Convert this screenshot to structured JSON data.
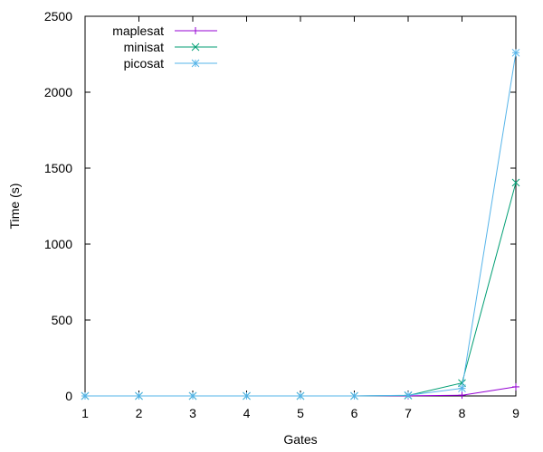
{
  "chart_data": {
    "type": "line",
    "title": "",
    "xlabel": "Gates",
    "ylabel": "Time (s)",
    "xlim": [
      1,
      9
    ],
    "ylim": [
      0,
      2500
    ],
    "xticks": [
      1,
      2,
      3,
      4,
      5,
      6,
      7,
      8,
      9
    ],
    "yticks": [
      0,
      500,
      1000,
      1500,
      2000,
      2500
    ],
    "grid": false,
    "legend_position": "top-left",
    "x": [
      1,
      2,
      3,
      4,
      5,
      6,
      7,
      8,
      9
    ],
    "series": [
      {
        "name": "maplesat",
        "color": "#9400d3",
        "marker": "plus",
        "values": [
          0,
          0,
          0,
          0,
          0,
          0,
          0.5,
          5,
          60
        ]
      },
      {
        "name": "minisat",
        "color": "#009e73",
        "marker": "cross",
        "values": [
          0,
          0,
          0,
          0,
          0,
          0,
          3,
          85,
          1405
        ]
      },
      {
        "name": "picosat",
        "color": "#56b4e9",
        "marker": "star",
        "values": [
          0,
          0,
          0,
          0,
          0,
          0,
          5,
          50,
          2260
        ]
      }
    ]
  }
}
